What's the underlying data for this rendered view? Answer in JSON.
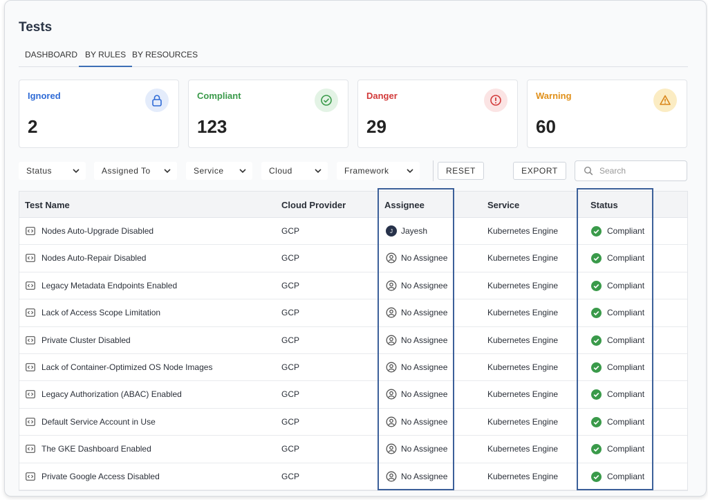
{
  "page": {
    "title": "Tests"
  },
  "tabs": [
    {
      "label": "DASHBOARD",
      "active": false
    },
    {
      "label": "BY RULES",
      "active": true
    },
    {
      "label": "BY RESOURCES",
      "active": false
    }
  ],
  "cards": [
    {
      "label": "Ignored",
      "value": "2",
      "color": "#2f6bd6",
      "icon": "lock-icon"
    },
    {
      "label": "Compliant",
      "value": "123",
      "color": "#3a9a4a",
      "icon": "check-circle-icon"
    },
    {
      "label": "Danger",
      "value": "29",
      "color": "#d23a3a",
      "icon": "alert-circle-icon"
    },
    {
      "label": "Warning",
      "value": "60",
      "color": "#e0901a",
      "icon": "warning-triangle-icon"
    }
  ],
  "filters": [
    {
      "label": "Status"
    },
    {
      "label": "Assigned To"
    },
    {
      "label": "Service"
    },
    {
      "label": "Cloud"
    },
    {
      "label": "Framework"
    }
  ],
  "actions": {
    "reset": "RESET",
    "export": "EXPORT"
  },
  "search": {
    "placeholder": "Search",
    "value": ""
  },
  "table": {
    "columns": [
      "Test Name",
      "Cloud Provider",
      "Assignee",
      "Service",
      "Status"
    ],
    "rows": [
      {
        "name": "Nodes Auto-Upgrade Disabled",
        "cloud": "GCP",
        "assignee": "Jayesh",
        "avatar_initial": "J",
        "service": "Kubernetes Engine",
        "status": "Compliant"
      },
      {
        "name": "Nodes Auto-Repair Disabled",
        "cloud": "GCP",
        "assignee": "No Assignee",
        "avatar_initial": "",
        "service": "Kubernetes Engine",
        "status": "Compliant"
      },
      {
        "name": "Legacy Metadata Endpoints Enabled",
        "cloud": "GCP",
        "assignee": "No Assignee",
        "avatar_initial": "",
        "service": "Kubernetes Engine",
        "status": "Compliant"
      },
      {
        "name": "Lack of Access Scope Limitation",
        "cloud": "GCP",
        "assignee": "No Assignee",
        "avatar_initial": "",
        "service": "Kubernetes Engine",
        "status": "Compliant"
      },
      {
        "name": "Private Cluster Disabled",
        "cloud": "GCP",
        "assignee": "No Assignee",
        "avatar_initial": "",
        "service": "Kubernetes Engine",
        "status": "Compliant"
      },
      {
        "name": "Lack of Container-Optimized OS Node Images",
        "cloud": "GCP",
        "assignee": "No Assignee",
        "avatar_initial": "",
        "service": "Kubernetes Engine",
        "status": "Compliant"
      },
      {
        "name": "Legacy Authorization (ABAC) Enabled",
        "cloud": "GCP",
        "assignee": "No Assignee",
        "avatar_initial": "",
        "service": "Kubernetes Engine",
        "status": "Compliant"
      },
      {
        "name": "Default Service Account in Use",
        "cloud": "GCP",
        "assignee": "No Assignee",
        "avatar_initial": "",
        "service": "Kubernetes Engine",
        "status": "Compliant"
      },
      {
        "name": "The GKE Dashboard Enabled",
        "cloud": "GCP",
        "assignee": "No Assignee",
        "avatar_initial": "",
        "service": "Kubernetes Engine",
        "status": "Compliant"
      },
      {
        "name": "Private Google Access Disabled",
        "cloud": "GCP",
        "assignee": "No Assignee",
        "avatar_initial": "",
        "service": "Kubernetes Engine",
        "status": "Compliant"
      }
    ]
  },
  "colors": {
    "accent": "#3d6fb6",
    "highlight": "#3b5f99",
    "status_ok": "#3a9a4a"
  }
}
